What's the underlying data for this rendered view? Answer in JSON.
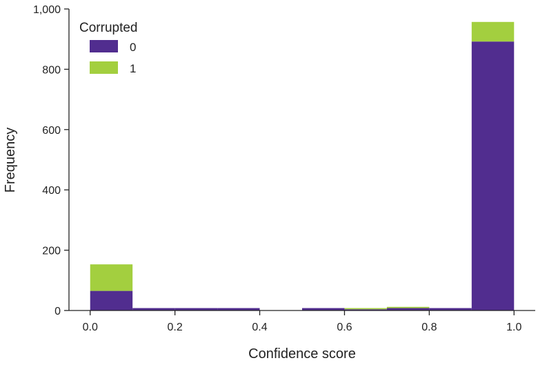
{
  "chart_data": {
    "type": "bar",
    "stacked": true,
    "title": "",
    "xlabel": "Confidence score",
    "ylabel": "Frequency",
    "xlim": [
      -0.05,
      1.05
    ],
    "ylim": [
      0,
      1000
    ],
    "xticks": [
      0.0,
      0.2,
      0.4,
      0.6,
      0.8,
      1.0
    ],
    "xtick_labels": [
      "0.0",
      "0.2",
      "0.4",
      "0.6",
      "0.8",
      "1.0"
    ],
    "yticks": [
      0,
      200,
      400,
      600,
      800,
      1000
    ],
    "ytick_labels": [
      "0",
      "200",
      "400",
      "600",
      "800",
      "1,000"
    ],
    "bins": [
      [
        0.0,
        0.1
      ],
      [
        0.1,
        0.2
      ],
      [
        0.2,
        0.3
      ],
      [
        0.3,
        0.4
      ],
      [
        0.4,
        0.5
      ],
      [
        0.5,
        0.6
      ],
      [
        0.6,
        0.7
      ],
      [
        0.7,
        0.8
      ],
      [
        0.8,
        0.9
      ],
      [
        0.9,
        1.0
      ]
    ],
    "legend": {
      "title": "Corrupted",
      "position": "top-left"
    },
    "series": [
      {
        "name": "0",
        "color": "#512d8f",
        "values": [
          65,
          8,
          8,
          8,
          0,
          8,
          4,
          8,
          8,
          892
        ]
      },
      {
        "name": "1",
        "color": "#a3cf3f",
        "values": [
          88,
          0,
          0,
          0,
          0,
          0,
          4,
          4,
          0,
          65
        ]
      }
    ],
    "grid": false
  }
}
